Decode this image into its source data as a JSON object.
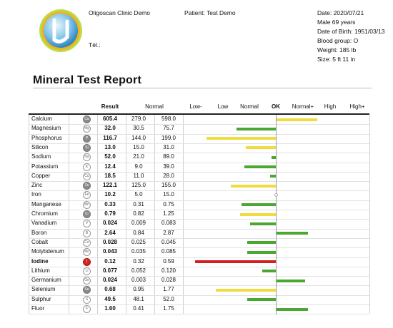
{
  "header": {
    "clinic": "Oligoscan Clinic Demo",
    "tel": "Tél.:",
    "patient": "Patient: Test Demo",
    "info": [
      "Date: 2020/07/21",
      "Male 69 years",
      "Date of Birth: 1951/03/13",
      "Blood group: O",
      "Weight: 185 lb",
      "Size: 5 ft 11 in"
    ]
  },
  "report_title": "Mineral Test Report",
  "columns": {
    "result": "Result",
    "normal": "Normal",
    "scale": [
      "Low-",
      "Low",
      "Normal",
      "OK",
      "Normal+",
      "High",
      "High+"
    ]
  },
  "colors": {
    "green": "#4aa732",
    "yellow": "#f1dc3f",
    "red": "#d31f1f"
  },
  "minerals": [
    {
      "name": "Calcium",
      "symbol": "Ca",
      "result": "605.4",
      "normal_low": "279.0",
      "normal_high": "598.0",
      "level": 1.35,
      "color": "yellow"
    },
    {
      "name": "Magnesium",
      "symbol": "Mg",
      "result": "32.0",
      "normal_low": "30.5",
      "normal_high": "75.7",
      "level": -1.3,
      "color": "green"
    },
    {
      "name": "Phosphorus",
      "symbol": "P",
      "result": "116.7",
      "normal_low": "144.0",
      "normal_high": "199.0",
      "level": -2.3,
      "color": "yellow"
    },
    {
      "name": "Silicon",
      "symbol": "Si",
      "result": "13.0",
      "normal_low": "15.0",
      "normal_high": "31.0",
      "level": -1.0,
      "color": "yellow"
    },
    {
      "name": "Sodium",
      "symbol": "Na",
      "result": "52.0",
      "normal_low": "21.0",
      "normal_high": "89.0",
      "level": -0.15,
      "color": "green"
    },
    {
      "name": "Potassium",
      "symbol": "K",
      "result": "12.4",
      "normal_low": "9.0",
      "normal_high": "39.0",
      "level": -1.05,
      "color": "green"
    },
    {
      "name": "Copper",
      "symbol": "Cu",
      "result": "18.5",
      "normal_low": "11.0",
      "normal_high": "28.0",
      "level": -0.2,
      "color": "green"
    },
    {
      "name": "Zinc",
      "symbol": "Zn",
      "result": "122.1",
      "normal_low": "125.0",
      "normal_high": "155.0",
      "level": -1.5,
      "color": "yellow"
    },
    {
      "name": "Iron",
      "symbol": "Fe",
      "result": "10.2",
      "normal_low": "5.0",
      "normal_high": "15.0",
      "level": 0,
      "color": "none"
    },
    {
      "name": "Manganese",
      "symbol": "Mn",
      "result": "0.33",
      "normal_low": "0.31",
      "normal_high": "0.75",
      "level": -1.15,
      "color": "green"
    },
    {
      "name": "Chromium",
      "symbol": "Cr",
      "result": "0.79",
      "normal_low": "0.82",
      "normal_high": "1.25",
      "level": -1.2,
      "color": "yellow"
    },
    {
      "name": "Vanadium",
      "symbol": "V",
      "result": "0.024",
      "normal_low": "0.009",
      "normal_high": "0.083",
      "level": -0.85,
      "color": "green"
    },
    {
      "name": "Boron",
      "symbol": "B",
      "result": "2.64",
      "normal_low": "0.84",
      "normal_high": "2.87",
      "level": 1.05,
      "color": "green"
    },
    {
      "name": "Cobalt",
      "symbol": "Co",
      "result": "0.028",
      "normal_low": "0.025",
      "normal_high": "0.045",
      "level": -0.95,
      "color": "green"
    },
    {
      "name": "Molybdenum",
      "symbol": "Mo",
      "result": "0.043",
      "normal_low": "0.035",
      "normal_high": "0.085",
      "level": -0.95,
      "color": "green"
    },
    {
      "name": "Iodine",
      "symbol": "I",
      "result": "0.12",
      "normal_low": "0.32",
      "normal_high": "0.59",
      "level": -2.7,
      "color": "red",
      "alert": true
    },
    {
      "name": "Lithium",
      "symbol": "Li",
      "result": "0.077",
      "normal_low": "0.052",
      "normal_high": "0.120",
      "level": -0.45,
      "color": "green"
    },
    {
      "name": "Germanium",
      "symbol": "Ge",
      "result": "0.024",
      "normal_low": "0.003",
      "normal_high": "0.028",
      "level": 0.95,
      "color": "green"
    },
    {
      "name": "Selenium",
      "symbol": "Se",
      "result": "0.68",
      "normal_low": "0.95",
      "normal_high": "1.77",
      "level": -2.0,
      "color": "yellow"
    },
    {
      "name": "Sulphur",
      "symbol": "S",
      "result": "49.5",
      "normal_low": "48.1",
      "normal_high": "52.0",
      "level": -0.95,
      "color": "green"
    },
    {
      "name": "Fluor",
      "symbol": "F",
      "result": "1.60",
      "normal_low": "0.41",
      "normal_high": "1.75",
      "level": 1.05,
      "color": "green"
    }
  ]
}
